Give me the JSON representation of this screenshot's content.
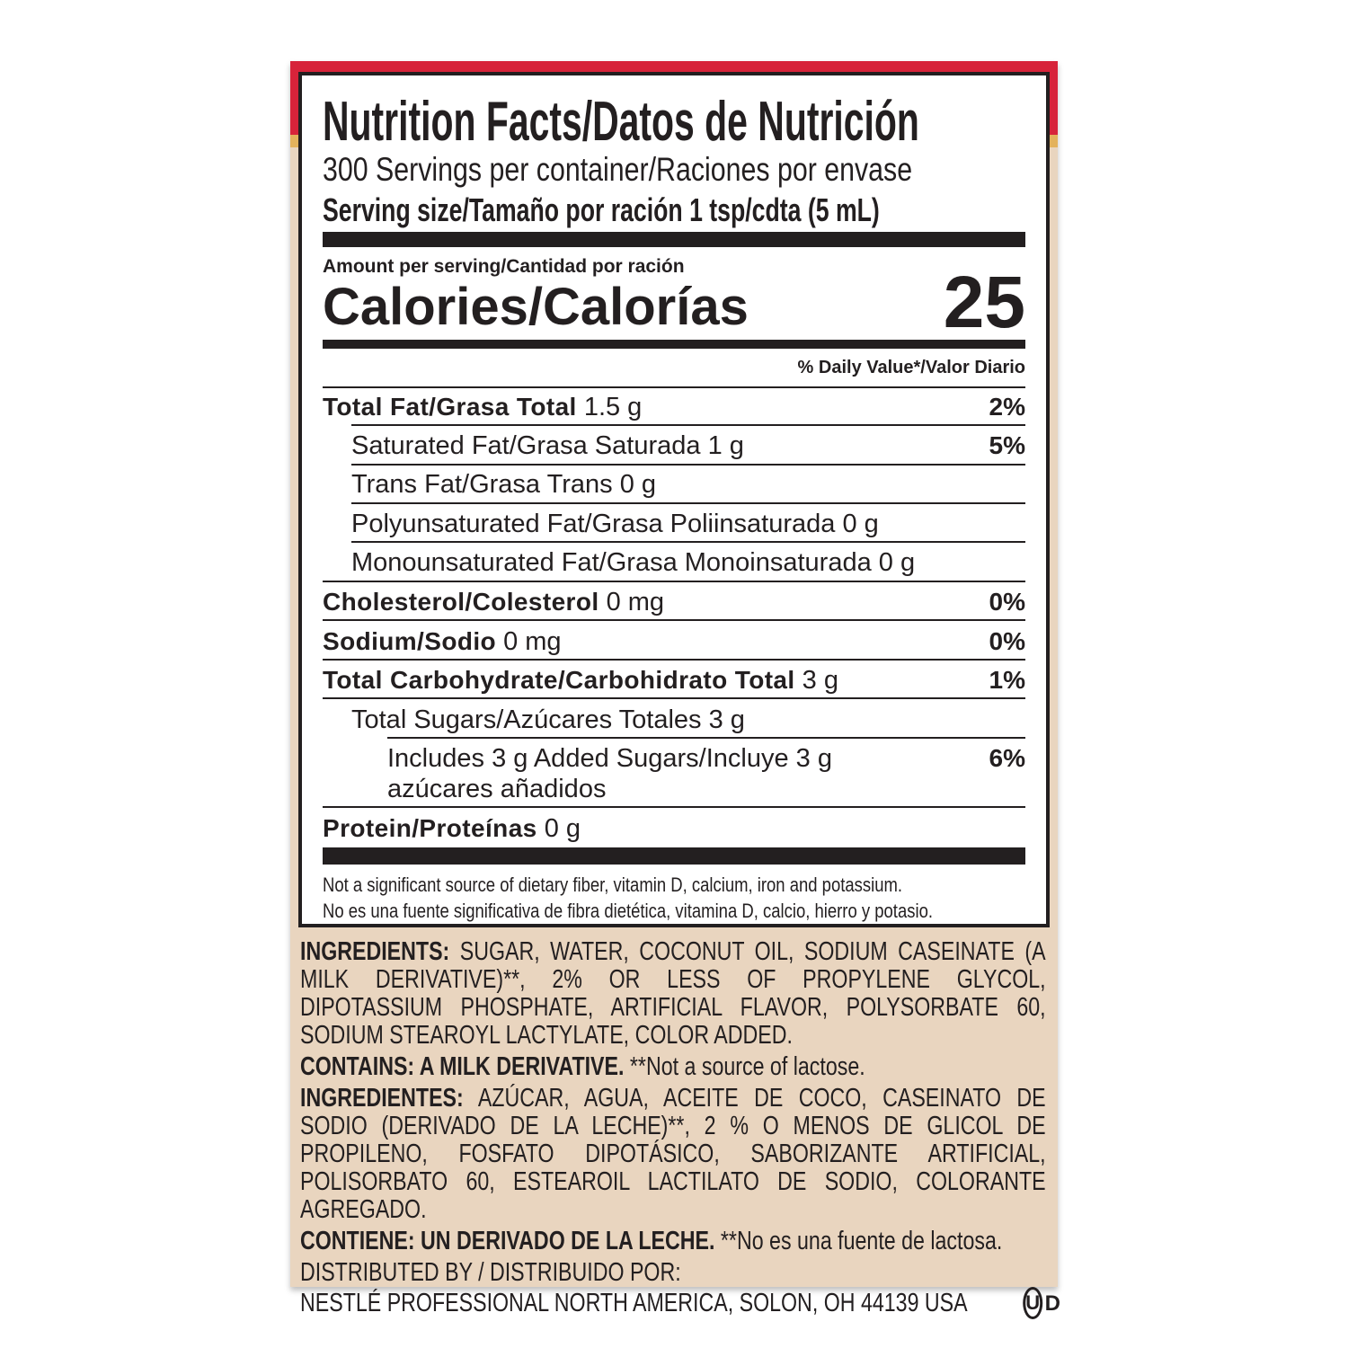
{
  "colors": {
    "red_band": "#d7233a",
    "gold_band": "#e3b25c",
    "background": "#e9d5bf",
    "ink": "#231f20"
  },
  "header": {
    "title": "Nutrition Facts/Datos de Nutrición",
    "servings": "300 Servings per container/Raciones por envase",
    "serving_size": "Serving size/Tamaño por ración 1 tsp/cdta (5 mL)"
  },
  "calories": {
    "amount_label": "Amount per serving/Cantidad por ración",
    "label": "Calories/Calorías",
    "value": "25"
  },
  "dv_header": "% Daily Value*/Valor Diario",
  "nutrients": [
    {
      "name": "Total Fat/Grasa Total",
      "amount": "1.5 g",
      "dv": "2%"
    },
    {
      "name": "Saturated Fat/Grasa Saturada",
      "amount": "1 g",
      "dv": "5%"
    },
    {
      "name": "Trans Fat/Grasa Trans",
      "amount": "0 g",
      "dv": ""
    },
    {
      "name": "Polyunsaturated Fat/Grasa Poliinsaturada",
      "amount": "0 g",
      "dv": ""
    },
    {
      "name": "Monounsaturated Fat/Grasa Monoinsaturada",
      "amount": "0 g",
      "dv": ""
    },
    {
      "name": "Cholesterol/Colesterol",
      "amount": "0 mg",
      "dv": "0%"
    },
    {
      "name": "Sodium/Sodio",
      "amount": "0 mg",
      "dv": "0%"
    },
    {
      "name": "Total Carbohydrate/Carbohidrato Total",
      "amount": "3 g",
      "dv": "1%"
    },
    {
      "name": "Total Sugars/Azúcares Totales",
      "amount": "3 g",
      "dv": ""
    },
    {
      "name": "Includes 3 g Added Sugars/Incluye 3 g",
      "amount": "azúcares añadidos",
      "dv": "6%"
    },
    {
      "name": "Protein/Proteínas",
      "amount": "0 g",
      "dv": ""
    }
  ],
  "footnote": [
    "Not a significant source of dietary fiber, vitamin D, calcium, iron and potassium.",
    "No es una fuente significativa de fibra dietética, vitamina D, calcio, hierro y potasio."
  ],
  "ingredients": {
    "en_label": "INGREDIENTS:",
    "en_text": "SUGAR, WATER, COCONUT OIL, SODIUM CASEINATE (A MILK DERIVATIVE)**, 2% OR LESS OF PROPYLENE GLYCOL, DIPOTASSIUM PHOSPHATE, ARTIFICIAL FLAVOR, POLYSORBATE 60, SODIUM STEAROYL LACTYLATE, COLOR ADDED.",
    "en_contains_label": "CONTAINS: A MILK DERIVATIVE.",
    "en_contains_note": "**Not a source of lactose.",
    "es_label": "INGREDIENTES:",
    "es_text": "AZÚCAR, AGUA, ACEITE DE COCO, CASEINATO DE SODIO (DERIVADO DE LA LECHE)**, 2 % O MENOS DE GLICOL DE PROPILENO, FOSFATO DIPOTÁSICO, SABORIZANTE ARTIFICIAL, POLISORBATO 60, ESTEAROIL LACTILATO DE SODIO, COLORANTE AGREGADO.",
    "es_contains_label": "CONTIENE: UN DERIVADO DE LA LECHE.",
    "es_contains_note": "**No es una fuente de lactosa.",
    "distributed": "DISTRIBUTED BY / DISTRIBUIDO POR:",
    "distributor": "NESTLÉ PROFESSIONAL NORTH AMERICA, SOLON, OH 44139 USA",
    "kosher_symbol": "U",
    "kosher_suffix": "D"
  }
}
